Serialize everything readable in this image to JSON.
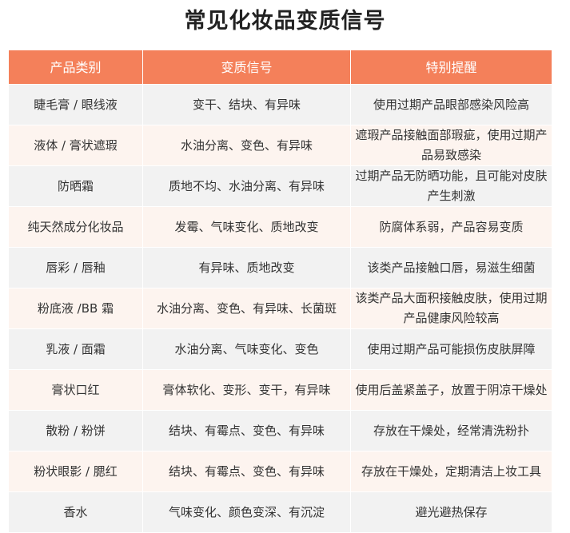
{
  "title": "常见化妆品变质信号",
  "table": {
    "headers": [
      "产品类别",
      "变质信号",
      "特别提醒"
    ],
    "rows": [
      [
        "睫毛膏 / 眼线液",
        "变干、结块、有异味",
        "使用过期产品眼部感染风险高"
      ],
      [
        "液体 / 膏状遮瑕",
        "水油分离、变色、有异味",
        "遮瑕产品接触面部瑕疵，使用过期产品易致感染"
      ],
      [
        "防晒霜",
        "质地不均、水油分离、有异味",
        "过期产品无防晒功能，且可能对皮肤产生刺激"
      ],
      [
        "纯天然成分化妆品",
        "发霉、气味变化、质地改变",
        "防腐体系弱，产品容易变质"
      ],
      [
        "唇彩 / 唇釉",
        "有异味、质地改变",
        "该类产品接触口唇，易滋生细菌"
      ],
      [
        "粉底液 /BB 霜",
        "水油分离、变色、有异味、长菌斑",
        "该类产品大面积接触皮肤，使用过期产品健康风险较高"
      ],
      [
        "乳液 / 面霜",
        "水油分离、气味变化、变色",
        "使用过期产品可能损伤皮肤屏障"
      ],
      [
        "膏状口红",
        "膏体软化、变形、变干，有异味",
        "使用后盖紧盖子，放置于阴凉干燥处"
      ],
      [
        "散粉 / 粉饼",
        "结块、有霉点、变色、有异味",
        "存放在干燥处，经常清洗粉扑"
      ],
      [
        "粉状眼影 / 腮红",
        "结块、有霉点、变色、有异味",
        "存放在干燥处，定期清洁上妆工具"
      ],
      [
        "香水",
        "气味变化、颜色变深、有沉淀",
        "避光避热保存"
      ]
    ]
  },
  "colors": {
    "header": "#f4805a",
    "row_gray": "#f2f2f2",
    "row_peach": "#fdf4ef"
  }
}
